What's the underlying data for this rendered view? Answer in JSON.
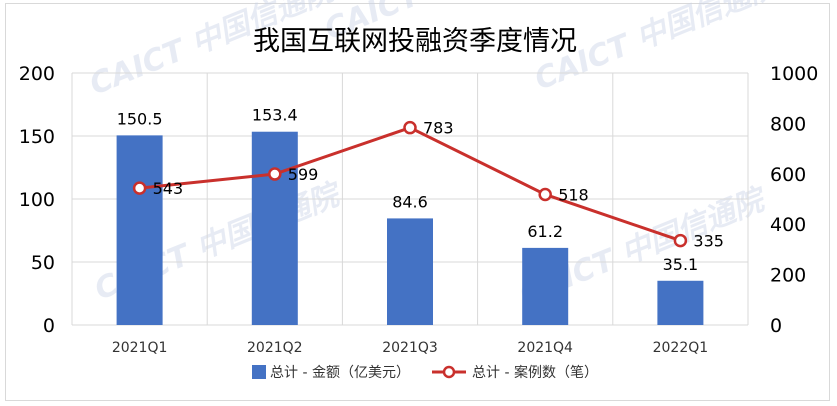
{
  "watermark": "CAICT 中国信通院",
  "chart_data": {
    "type": "bar",
    "title": "我国互联网投融资季度情况",
    "categories": [
      "2021Q1",
      "2021Q2",
      "2021Q3",
      "2021Q4",
      "2022Q1"
    ],
    "series": [
      {
        "name": "总计 - 金额（亿美元）",
        "type": "bar",
        "axis": "left",
        "color": "#4472c4",
        "values": [
          150.5,
          153.4,
          84.6,
          61.2,
          35.1
        ]
      },
      {
        "name": "总计 - 案例数（笔）",
        "type": "line",
        "axis": "right",
        "color": "#c9302c",
        "values": [
          543,
          599,
          783,
          518,
          335
        ]
      }
    ],
    "y_left": {
      "min": 0,
      "max": 200,
      "ticks": [
        0,
        50,
        100,
        150,
        200
      ]
    },
    "y_right": {
      "min": 0,
      "max": 1000,
      "ticks": [
        0,
        200,
        400,
        600,
        800,
        1000
      ]
    },
    "grid": true,
    "legend_position": "bottom"
  }
}
